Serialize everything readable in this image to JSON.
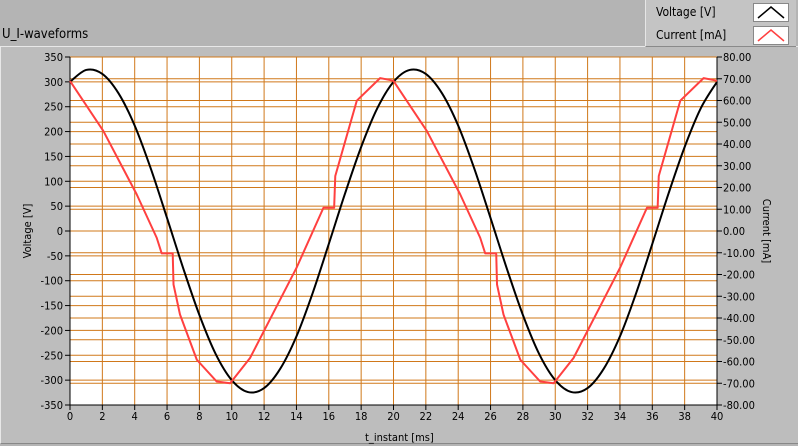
{
  "chart_data": {
    "type": "line",
    "title": "U_I-waveforms",
    "xlabel": "t_instant [ms]",
    "ylabel_left": "Voltage [V]",
    "ylabel_right": "Current [mA]",
    "xlim": [
      0,
      40
    ],
    "ylim_left": [
      -350,
      350
    ],
    "ylim_right": [
      -80,
      80
    ],
    "x_ticks": [
      "0",
      "2",
      "4",
      "6",
      "8",
      "10",
      "12",
      "14",
      "16",
      "18",
      "20",
      "22",
      "24",
      "26",
      "28",
      "30",
      "32",
      "34",
      "36",
      "38",
      "40"
    ],
    "y_left_ticks": [
      "350",
      "300",
      "250",
      "200",
      "150",
      "100",
      "50",
      "0",
      "-50",
      "-100",
      "-150",
      "-200",
      "-250",
      "-300",
      "-350"
    ],
    "y_right_ticks": [
      "80.00",
      "70.00",
      "60.00",
      "50.00",
      "40.00",
      "30.00",
      "20.00",
      "10.00",
      "0.00",
      "-10.00",
      "-20.00",
      "-30.00",
      "-40.00",
      "-50.00",
      "-60.00",
      "-70.00",
      "-80.00"
    ],
    "grid": true,
    "grid_color": "#d0781a",
    "legend_placement": "top-right",
    "series": [
      {
        "name": "Voltage [V]",
        "axis": "left",
        "color": "#000000",
        "x": [
          0,
          1,
          2,
          3,
          4,
          5,
          6,
          7,
          8,
          9,
          10,
          11,
          12,
          13,
          14,
          15,
          16,
          17,
          18,
          19,
          20,
          21,
          22,
          23,
          24,
          25,
          26,
          27,
          28,
          29,
          30,
          31,
          32,
          33,
          34,
          35,
          36,
          37,
          38,
          39,
          40
        ],
        "y": [
          300,
          324,
          316,
          277,
          212,
          125,
          26,
          -75,
          -169,
          -247,
          -300,
          -324,
          -316,
          -277,
          -212,
          -125,
          -26,
          75,
          169,
          247,
          300,
          324,
          316,
          277,
          212,
          125,
          26,
          -75,
          -169,
          -247,
          -300,
          -324,
          -316,
          -277,
          -212,
          -125,
          -26,
          75,
          169,
          247,
          300
        ]
      },
      {
        "name": "Current [mA]",
        "axis": "right",
        "color": "#ff4040",
        "x": [
          0,
          2.06,
          4.12,
          5.36,
          5.67,
          6.35,
          6.4,
          6.8,
          7.84,
          9.07,
          9.9,
          11.13,
          14.0,
          15.67,
          16.33,
          16.4,
          17.73,
          19.17,
          19.8,
          20,
          22.06,
          24.12,
          25.36,
          25.67,
          26.35,
          26.4,
          26.8,
          27.84,
          29.07,
          29.9,
          31.13,
          34.0,
          35.67,
          36.33,
          36.4,
          37.73,
          39.17,
          39.8,
          40
        ],
        "y": [
          69,
          46,
          16.9,
          -3.1,
          -10.3,
          -10.3,
          -24.6,
          -38.4,
          -59.2,
          -69.2,
          -70,
          -58.4,
          -17,
          10.7,
          10.7,
          25.3,
          59.9,
          70.3,
          69.4,
          69,
          46,
          16.9,
          -3.1,
          -10.3,
          -10.3,
          -24.6,
          -38.4,
          -59.2,
          -69.2,
          -70,
          -58.4,
          -17,
          10.7,
          10.7,
          25.3,
          59.9,
          70.3,
          69.4,
          69
        ]
      }
    ]
  }
}
